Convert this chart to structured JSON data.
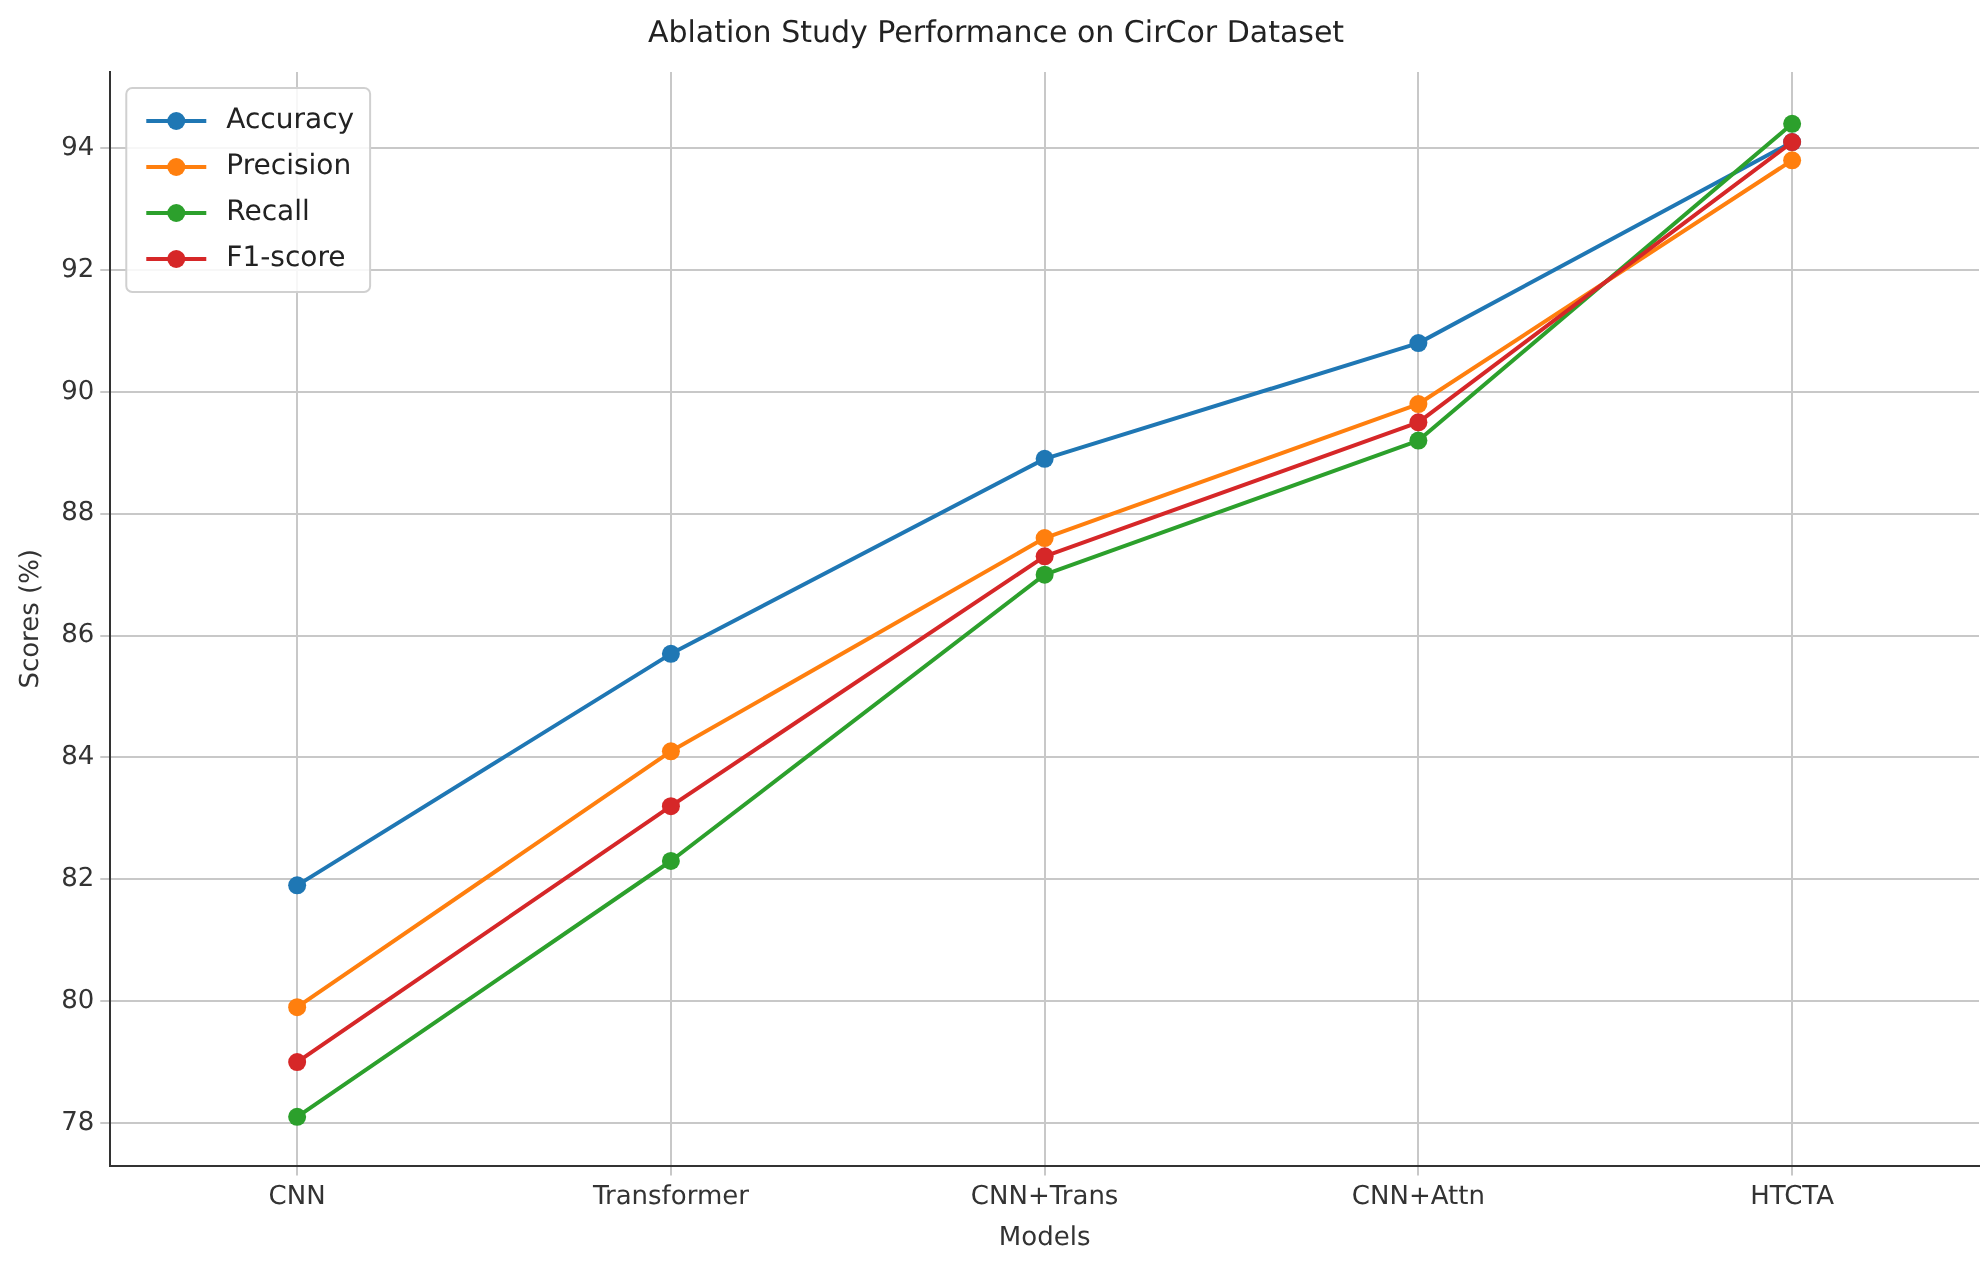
{
  "chart_data": {
    "type": "line",
    "title": "Ablation Study Performance on CirCor Dataset",
    "xlabel": "Models",
    "ylabel": "Scores (%)",
    "categories": [
      "CNN",
      "Transformer",
      "CNN+Trans",
      "CNN+Attn",
      "HTCTA"
    ],
    "series": [
      {
        "name": "Accuracy",
        "color": "#1f77b4",
        "values": [
          81.9,
          85.7,
          88.9,
          90.8,
          94.1
        ]
      },
      {
        "name": "Precision",
        "color": "#ff7f0e",
        "values": [
          79.9,
          84.1,
          87.6,
          89.8,
          93.8
        ]
      },
      {
        "name": "Recall",
        "color": "#2ca02c",
        "values": [
          78.1,
          82.3,
          87.0,
          89.2,
          94.4
        ]
      },
      {
        "name": "F1-score",
        "color": "#d62728",
        "values": [
          79.0,
          83.2,
          87.3,
          89.5,
          94.1
        ]
      }
    ],
    "ylim": [
      77.3,
      95.25
    ],
    "yticks": [
      78,
      80,
      82,
      84,
      86,
      88,
      90,
      92,
      94
    ],
    "grid": true,
    "legend": "top left",
    "marker": "circle",
    "line_style": "solid"
  }
}
